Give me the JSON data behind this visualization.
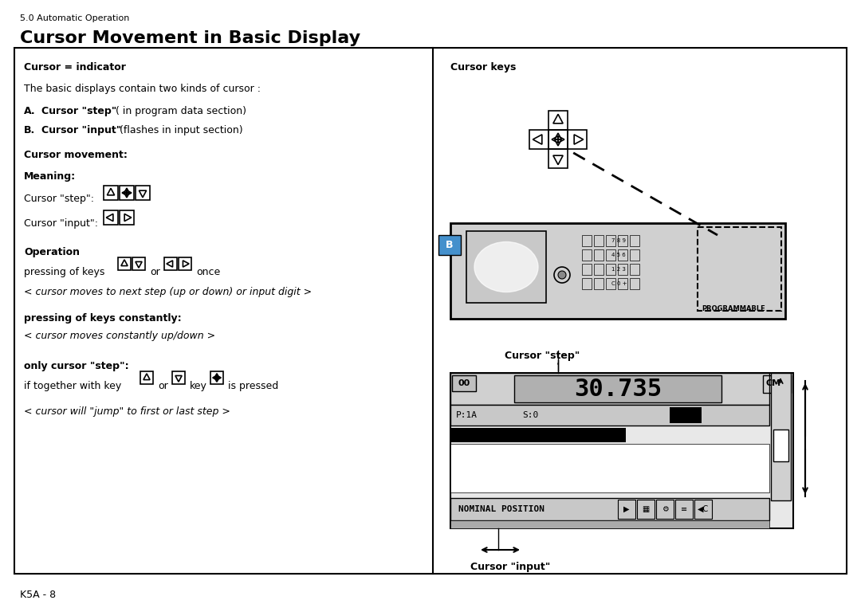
{
  "title": "Cursor Movement in Basic Display",
  "subtitle": "5.0 Automatic Operation",
  "footer": "K5A - 8",
  "bg_color": "#ffffff",
  "box_color": "#000000",
  "left_panel": {
    "cursor_indicator_title": "Cursor = indicator",
    "cursor_indicator_text": "The basic displays contain two kinds of cursor :",
    "cursor_a_label": "A.",
    "cursor_a_bold": "Cursor \"step\"",
    "cursor_a_text": "( in program data section)",
    "cursor_b_label": "B.",
    "cursor_b_bold": "Cursor \"input\"",
    "cursor_b_text": "(flashes in input section)",
    "cursor_movement_title": "Cursor movement:",
    "meaning_title": "Meaning:",
    "cursor_step_label": "Cursor \"step\":",
    "cursor_input_label": "Cursor \"input\":",
    "operation_title": "Operation",
    "operation_text1": "pressing of keys",
    "operation_text2": "once",
    "operation_text3": "< cursor moves to next step (up or down) or input digit >",
    "pressing_title": "pressing of keys constantly:",
    "pressing_text": "< cursor moves constantly up/down >",
    "only_title": "only cursor \"step\":",
    "only_text1": "if together with key",
    "only_text2": "or",
    "only_text3": "key",
    "only_text4": "is pressed",
    "only_text5": "< cursor will \"jump\" to first or last step >"
  },
  "right_panel": {
    "cursor_keys_title": "Cursor keys",
    "cursor_step_label": "Cursor \"step\"",
    "cursor_input_label": "Cursor \"input\""
  }
}
